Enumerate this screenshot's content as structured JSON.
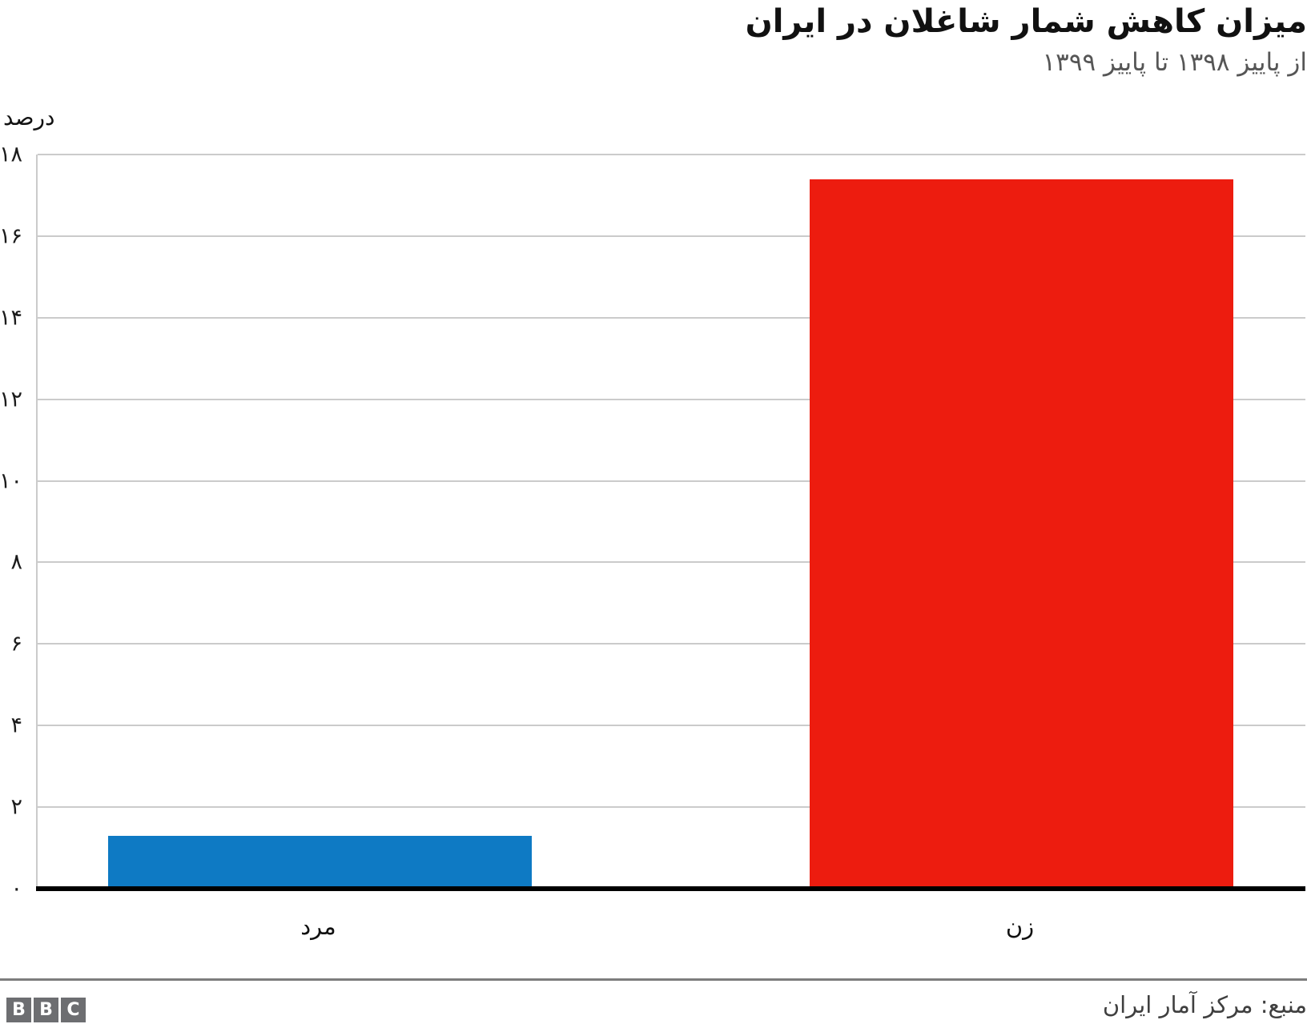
{
  "header": {
    "title": "میزان کاهش شمار شاغلان در ایران",
    "subtitle": "از پاییز ۱۳۹۸ تا پاییز ۱۳۹۹"
  },
  "chart_data": {
    "type": "bar",
    "title": "میزان کاهش شمار شاغلان در ایران",
    "subtitle": "از پاییز ۱۳۹۸ تا پاییز ۱۳۹۹",
    "ylabel": "درصد",
    "xlabel": "",
    "direction": "rtl",
    "categories": [
      "مرد",
      "زن"
    ],
    "values": [
      1.3,
      17.4
    ],
    "bar_colors": [
      "#0e7ac4",
      "#ed1c0f"
    ],
    "ylim": [
      0,
      18
    ],
    "grid": true,
    "legend": false,
    "grid_color": "#cbcbcb",
    "axis_color": "#000000",
    "yticks": [
      {
        "value": 0,
        "label": "۰"
      },
      {
        "value": 2,
        "label": "۲"
      },
      {
        "value": 4,
        "label": "۴"
      },
      {
        "value": 6,
        "label": "۶"
      },
      {
        "value": 8,
        "label": "۸"
      },
      {
        "value": 10,
        "label": "۱۰"
      },
      {
        "value": 12,
        "label": "۱۲"
      },
      {
        "value": 14,
        "label": "۱۴"
      },
      {
        "value": 16,
        "label": "۱۶"
      },
      {
        "value": 18,
        "label": "۱۸"
      }
    ]
  },
  "footer": {
    "logo_letters": [
      "B",
      "B",
      "C"
    ],
    "source": "منبع: مرکز آمار ایران"
  }
}
